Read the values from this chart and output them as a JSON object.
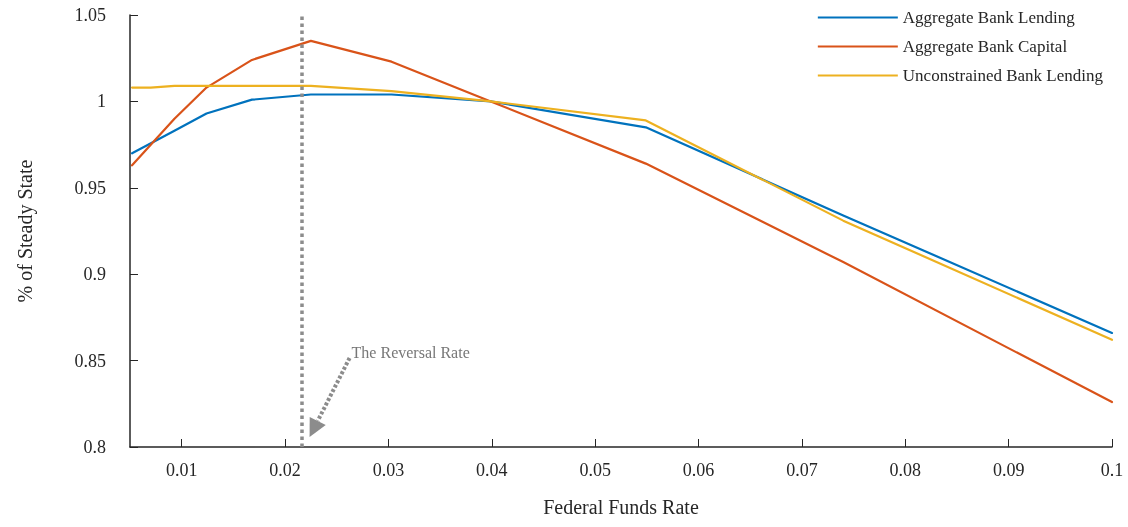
{
  "chart_data": {
    "type": "line",
    "xlabel": "Federal Funds Rate",
    "ylabel": "% of Steady State",
    "xlim": [
      0.005,
      0.1
    ],
    "xticks": [
      0.01,
      0.02,
      0.03,
      0.04,
      0.05,
      0.06,
      0.07,
      0.08,
      0.09,
      0.1
    ],
    "ylim": [
      0.8,
      1.05
    ],
    "yticks": [
      0.8,
      0.85,
      0.9,
      0.95,
      1,
      1.05
    ],
    "grid": false,
    "legend": "top right",
    "line_style": "solid",
    "marker": "none",
    "series": [
      {
        "name": "Aggregate Bank Lending",
        "color": "#0072bd",
        "x": [
          0.0052,
          0.0093,
          0.0124,
          0.0168,
          0.0225,
          0.0303,
          0.0399,
          0.0549,
          0.074,
          0.1
        ],
        "values": [
          0.97,
          0.983,
          0.993,
          1.001,
          1.004,
          1.004,
          1.0,
          0.985,
          0.934,
          0.866
        ]
      },
      {
        "name": "Aggregate Bank Capital",
        "color": "#d95319",
        "x": [
          0.0052,
          0.0093,
          0.0124,
          0.0168,
          0.0225,
          0.0303,
          0.0399,
          0.0549,
          0.074,
          0.1
        ],
        "values": [
          0.963,
          0.99,
          1.008,
          1.024,
          1.035,
          1.023,
          1.0,
          0.964,
          0.907,
          0.826
        ]
      },
      {
        "name": "Unconstrained Bank Lending",
        "color": "#edb120",
        "x": [
          0.0052,
          0.007,
          0.0093,
          0.0168,
          0.0225,
          0.0303,
          0.0399,
          0.0549,
          0.074,
          0.1
        ],
        "values": [
          1.008,
          1.008,
          1.009,
          1.009,
          1.009,
          1.006,
          1.0,
          0.989,
          0.931,
          0.862
        ]
      }
    ],
    "ref_lines": [
      {
        "axis": "x",
        "value": 0.0216,
        "color": "#8c8c8c",
        "line_style": "dotted"
      }
    ],
    "annotations": [
      "The Reversal Rate"
    ]
  }
}
